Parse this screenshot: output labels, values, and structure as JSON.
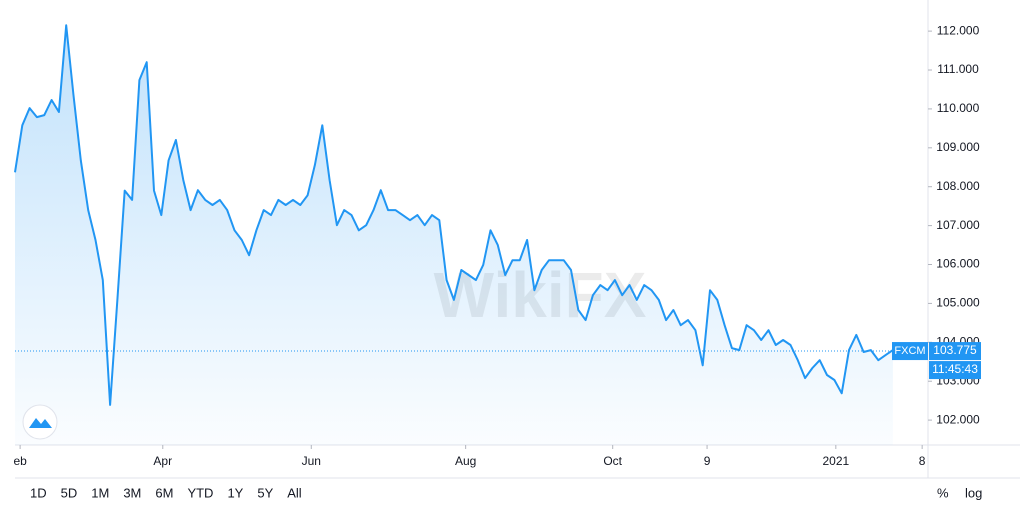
{
  "chart_data": {
    "type": "line",
    "symbol": "FXCM",
    "last_value": 103.775,
    "countdown": "11:45:43",
    "color": "#2196f3",
    "watermark": "WikiFX",
    "values": [
      108.37,
      109.58,
      110.02,
      109.79,
      109.84,
      110.23,
      109.92,
      112.15,
      110.35,
      108.68,
      107.4,
      106.63,
      105.6,
      102.39,
      105.1,
      107.9,
      107.66,
      110.74,
      111.2,
      107.9,
      107.27,
      108.68,
      109.2,
      108.17,
      107.4,
      107.91,
      107.66,
      107.53,
      107.66,
      107.4,
      106.88,
      106.63,
      106.24,
      106.88,
      107.4,
      107.27,
      107.66,
      107.53,
      107.66,
      107.53,
      107.78,
      108.56,
      109.58,
      108.17,
      107.01,
      107.4,
      107.27,
      106.88,
      107.01,
      107.4,
      107.91,
      107.4,
      107.4,
      107.27,
      107.14,
      107.27,
      107.01,
      107.27,
      107.14,
      105.6,
      105.09,
      105.86,
      105.73,
      105.6,
      105.99,
      106.88,
      106.5,
      105.73,
      106.11,
      106.11,
      106.63,
      105.34,
      105.86,
      106.11,
      106.11,
      106.11,
      105.86,
      104.83,
      104.57,
      105.21,
      105.47,
      105.34,
      105.6,
      105.21,
      105.47,
      105.09,
      105.47,
      105.34,
      105.09,
      104.57,
      104.83,
      104.44,
      104.57,
      104.31,
      103.41,
      105.34,
      105.09,
      104.44,
      103.85,
      103.8,
      104.44,
      104.31,
      104.06,
      104.31,
      103.93,
      104.06,
      103.93,
      103.54,
      103.08,
      103.34,
      103.54,
      103.16,
      103.03,
      102.69,
      103.8,
      104.19,
      103.75,
      103.8,
      103.54,
      103.67,
      103.8
    ],
    "xlim": [
      0,
      124.8
    ],
    "xticks": [
      {
        "value": 0.7,
        "label": "eb"
      },
      {
        "value": 20.2,
        "label": "Apr"
      },
      {
        "value": 40.5,
        "label": "Jun"
      },
      {
        "value": 61.6,
        "label": "Aug"
      },
      {
        "value": 81.7,
        "label": "Oct"
      },
      {
        "value": 94.6,
        "label": "9"
      },
      {
        "value": 112.2,
        "label": "2021"
      },
      {
        "value": 124,
        "label": "8"
      }
    ],
    "ylim": [
      101.36,
      112.8
    ],
    "yticks": [
      {
        "value": 102,
        "label": "102.000"
      },
      {
        "value": 103,
        "label": "103.000"
      },
      {
        "value": 104,
        "label": "104.000"
      },
      {
        "value": 105,
        "label": "105.000"
      },
      {
        "value": 106,
        "label": "106.000"
      },
      {
        "value": 107,
        "label": "107.000"
      },
      {
        "value": 108,
        "label": "108.000"
      },
      {
        "value": 109,
        "label": "109.000"
      },
      {
        "value": 110,
        "label": "110.000"
      },
      {
        "value": 111,
        "label": "111.000"
      },
      {
        "value": 112,
        "label": "112.000"
      }
    ],
    "ranges": [
      "1D",
      "5D",
      "1M",
      "3M",
      "6M",
      "YTD",
      "1Y",
      "5Y",
      "All"
    ],
    "options": [
      "%",
      "log"
    ]
  }
}
